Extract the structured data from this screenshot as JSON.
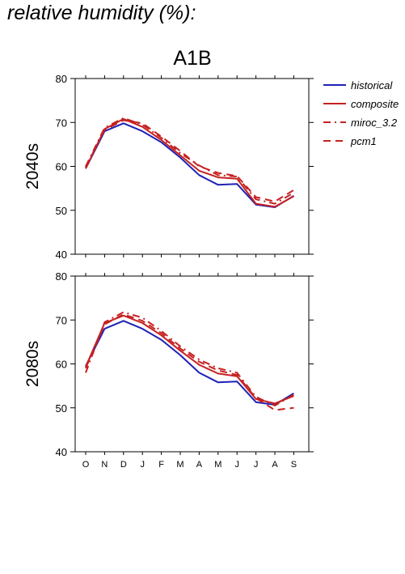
{
  "title": "relative humidity (%):",
  "chart_data": {
    "type": "line",
    "scenario": "A1B",
    "categories": [
      "O",
      "N",
      "D",
      "J",
      "F",
      "M",
      "A",
      "M",
      "J",
      "J",
      "A",
      "S"
    ],
    "ylim": [
      40,
      80
    ],
    "yticks": [
      40,
      50,
      60,
      70,
      80
    ],
    "grid": false,
    "legend_position": "right",
    "legend": [
      {
        "name": "historical",
        "color": "#1f22b4",
        "style": "solid"
      },
      {
        "name": "composite",
        "color": "#c62121",
        "style": "solid"
      },
      {
        "name": "miroc_3.2",
        "color": "#c62121",
        "style": "dashdot"
      },
      {
        "name": "pcm1",
        "color": "#c62121",
        "style": "dashed"
      }
    ],
    "panels": [
      {
        "label": "2040s",
        "series": [
          {
            "name": "historical",
            "values": [
              59.5,
              68.0,
              69.8,
              68.0,
              65.5,
              62.0,
              58.0,
              55.8,
              56.0,
              51.3,
              50.7,
              53.3
            ]
          },
          {
            "name": "composite",
            "values": [
              59.5,
              68.5,
              70.8,
              69.0,
              66.0,
              62.5,
              59.0,
              57.5,
              57.2,
              51.5,
              50.8,
              53.2
            ]
          },
          {
            "name": "miroc_3.2",
            "values": [
              60.0,
              68.8,
              71.0,
              69.5,
              66.5,
              63.0,
              60.2,
              58.0,
              57.7,
              52.5,
              51.5,
              54.0
            ]
          },
          {
            "name": "pcm1",
            "values": [
              59.8,
              68.3,
              70.5,
              69.8,
              66.8,
              63.5,
              60.0,
              58.5,
              57.8,
              53.0,
              52.0,
              54.6
            ]
          }
        ]
      },
      {
        "label": "2080s",
        "series": [
          {
            "name": "historical",
            "values": [
              59.5,
              68.0,
              69.8,
              68.0,
              65.5,
              62.0,
              58.0,
              55.8,
              56.0,
              51.3,
              50.7,
              53.3
            ]
          },
          {
            "name": "composite",
            "values": [
              59.3,
              69.3,
              71.0,
              69.3,
              66.5,
              63.0,
              59.8,
              57.8,
              57.2,
              52.0,
              51.0,
              52.7
            ]
          },
          {
            "name": "miroc_3.2",
            "values": [
              58.0,
              69.5,
              71.8,
              70.5,
              67.5,
              64.0,
              61.0,
              59.0,
              58.0,
              52.5,
              50.5,
              53.0
            ]
          },
          {
            "name": "pcm1",
            "values": [
              59.0,
              69.0,
              71.3,
              69.8,
              67.0,
              63.5,
              60.5,
              58.5,
              57.5,
              52.2,
              49.5,
              50.0
            ]
          }
        ]
      }
    ]
  }
}
